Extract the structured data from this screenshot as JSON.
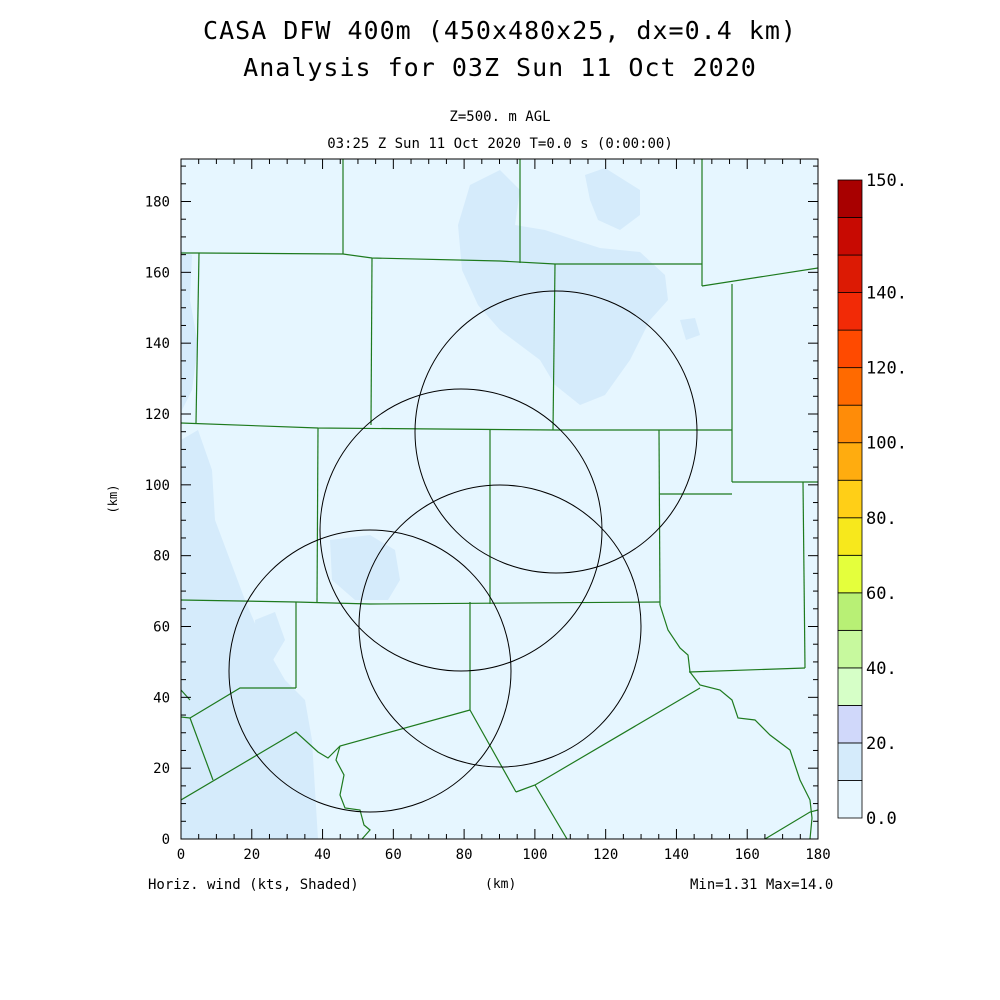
{
  "header": {
    "title": "CASA DFW 400m (450x480x25, dx=0.4 km)",
    "subtitle": "Analysis for 03Z Sun 11 Oct 2020",
    "level": "Z=500. m AGL",
    "time": "03:25 Z Sun 11 Oct 2020   T=0.0 s (0:00:00)"
  },
  "footer": {
    "field_label": "Horiz. wind (kts, Shaded)",
    "x_unit": "(km)",
    "minmax": "Min=1.31 Max=14.0"
  },
  "chart_data": {
    "type": "map",
    "xlabel": "(km)",
    "ylabel": "(km)",
    "xlim": [
      0,
      180
    ],
    "ylim": [
      0,
      192
    ],
    "x_ticks": [
      "0",
      "20",
      "40",
      "60",
      "80",
      "100",
      "120",
      "140",
      "160",
      "180"
    ],
    "y_ticks": [
      "0",
      "20",
      "40",
      "60",
      "80",
      "100",
      "120",
      "140",
      "160",
      "180"
    ],
    "colorbar": {
      "labels": [
        "0.0",
        "20.",
        "40.",
        "60.",
        "80.",
        "100.",
        "120.",
        "140.",
        "150."
      ],
      "colors": [
        "#e6f6ff",
        "#d5ebfb",
        "#d0d8fa",
        "#d6ffc7",
        "#c7f99e",
        "#b8f075",
        "#e4ff3c",
        "#f7e81c",
        "#ffcf17",
        "#ffac0f",
        "#ff8c08",
        "#ff6a00",
        "#ff4a00",
        "#f22a06",
        "#dc1a04",
        "#c80a02",
        "#a80000"
      ]
    },
    "radar_rings": [
      {
        "center_km": [
          106,
          115
        ],
        "radius_km": 40
      },
      {
        "center_km": [
          80,
          87
        ],
        "radius_km": 40
      },
      {
        "center_km": [
          90,
          61
        ],
        "radius_km": 40
      },
      {
        "center_km": [
          53,
          48
        ],
        "radius_km": 40
      }
    ]
  }
}
